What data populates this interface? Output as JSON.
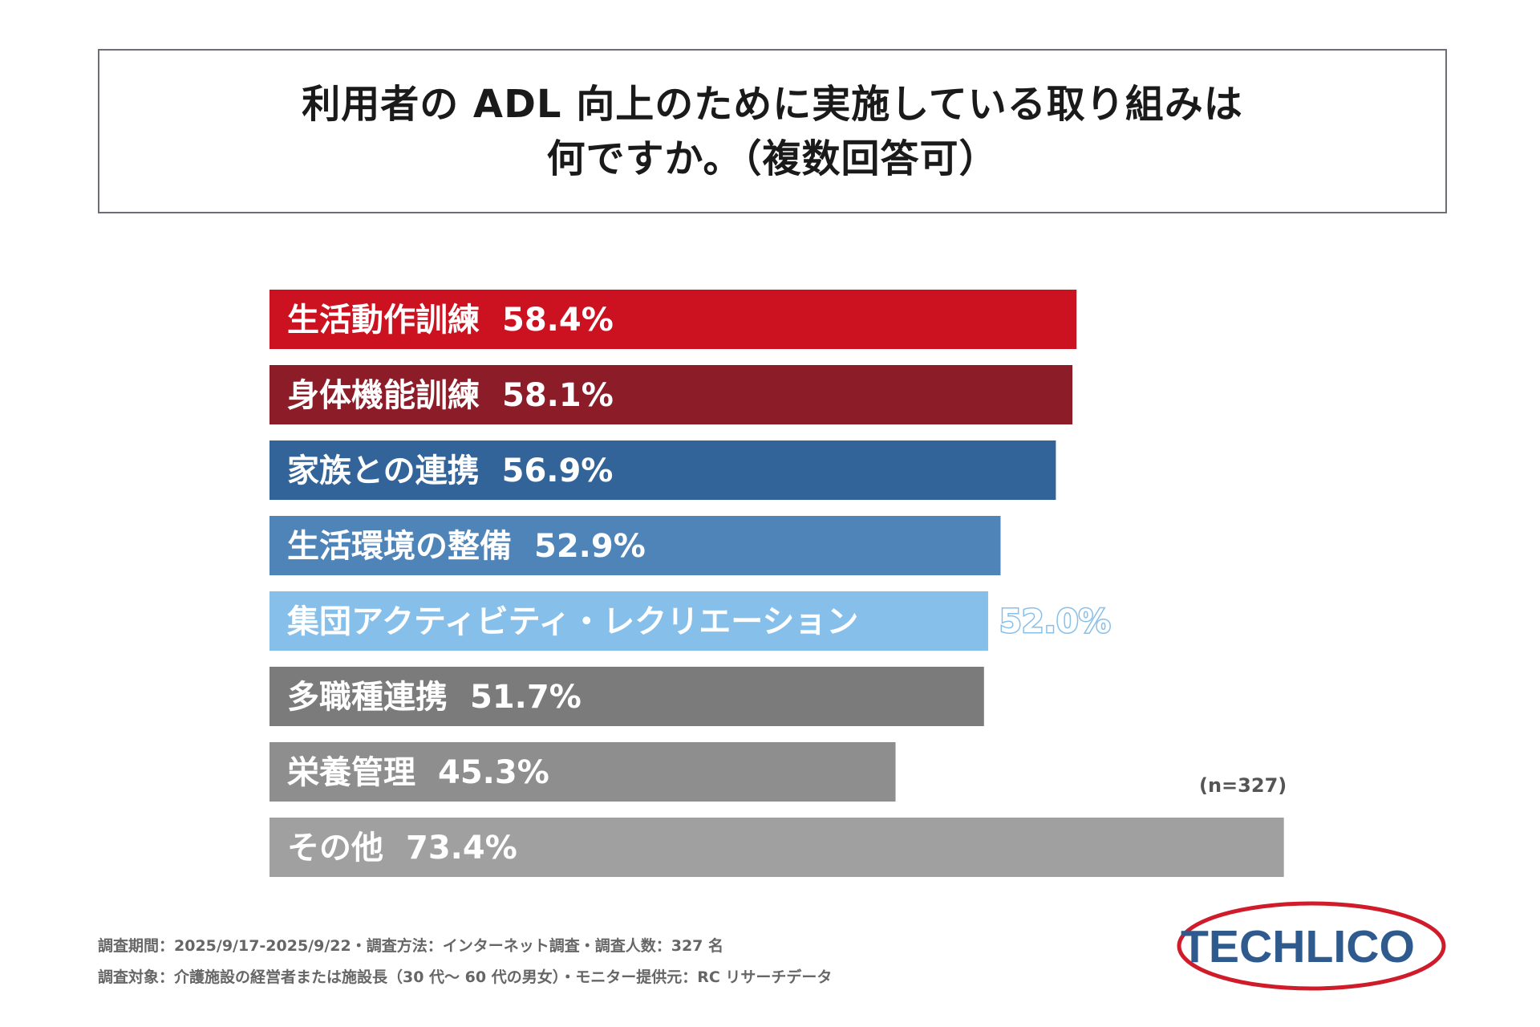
{
  "title": {
    "line1": "利用者の ADL 向上のために実施している取り組みは",
    "line2": "何ですか。（複数回答可）"
  },
  "chart_data": {
    "type": "bar",
    "orientation": "horizontal",
    "categories": [
      "生活動作訓練",
      "身体機能訓練",
      "家族との連携",
      "生活環境の整備",
      "集団アクティビティ・レクリエーション",
      "多職種連携",
      "栄養管理",
      "その他"
    ],
    "values": [
      58.4,
      58.1,
      56.9,
      52.9,
      52.0,
      51.7,
      45.3,
      73.4
    ],
    "value_labels": [
      "58.4%",
      "58.1%",
      "56.9%",
      "52.9%",
      "52.0%",
      "51.7%",
      "45.3%",
      "73.4%"
    ],
    "colors": [
      "#cc1220",
      "#8b1c28",
      "#326499",
      "#4e84b8",
      "#86bfea",
      "#7b7b7b",
      "#8e8e8e",
      "#a0a0a0"
    ],
    "xlim": [
      0,
      100
    ]
  },
  "sample_size": "(n=327)",
  "footnotes": {
    "line1": "調査期間：2025/9/17-2025/9/22・調査方法：インターネット調査・調査人数：327 名",
    "line2": "調査対象：介護施設の経営者または施設長（30 代～ 60 代の男女）・モニター提供元：RC リサーチデータ"
  },
  "logo": {
    "text": "TECHLICO",
    "text_color": "#2e5a8e",
    "ring_color": "#d01c2a"
  }
}
